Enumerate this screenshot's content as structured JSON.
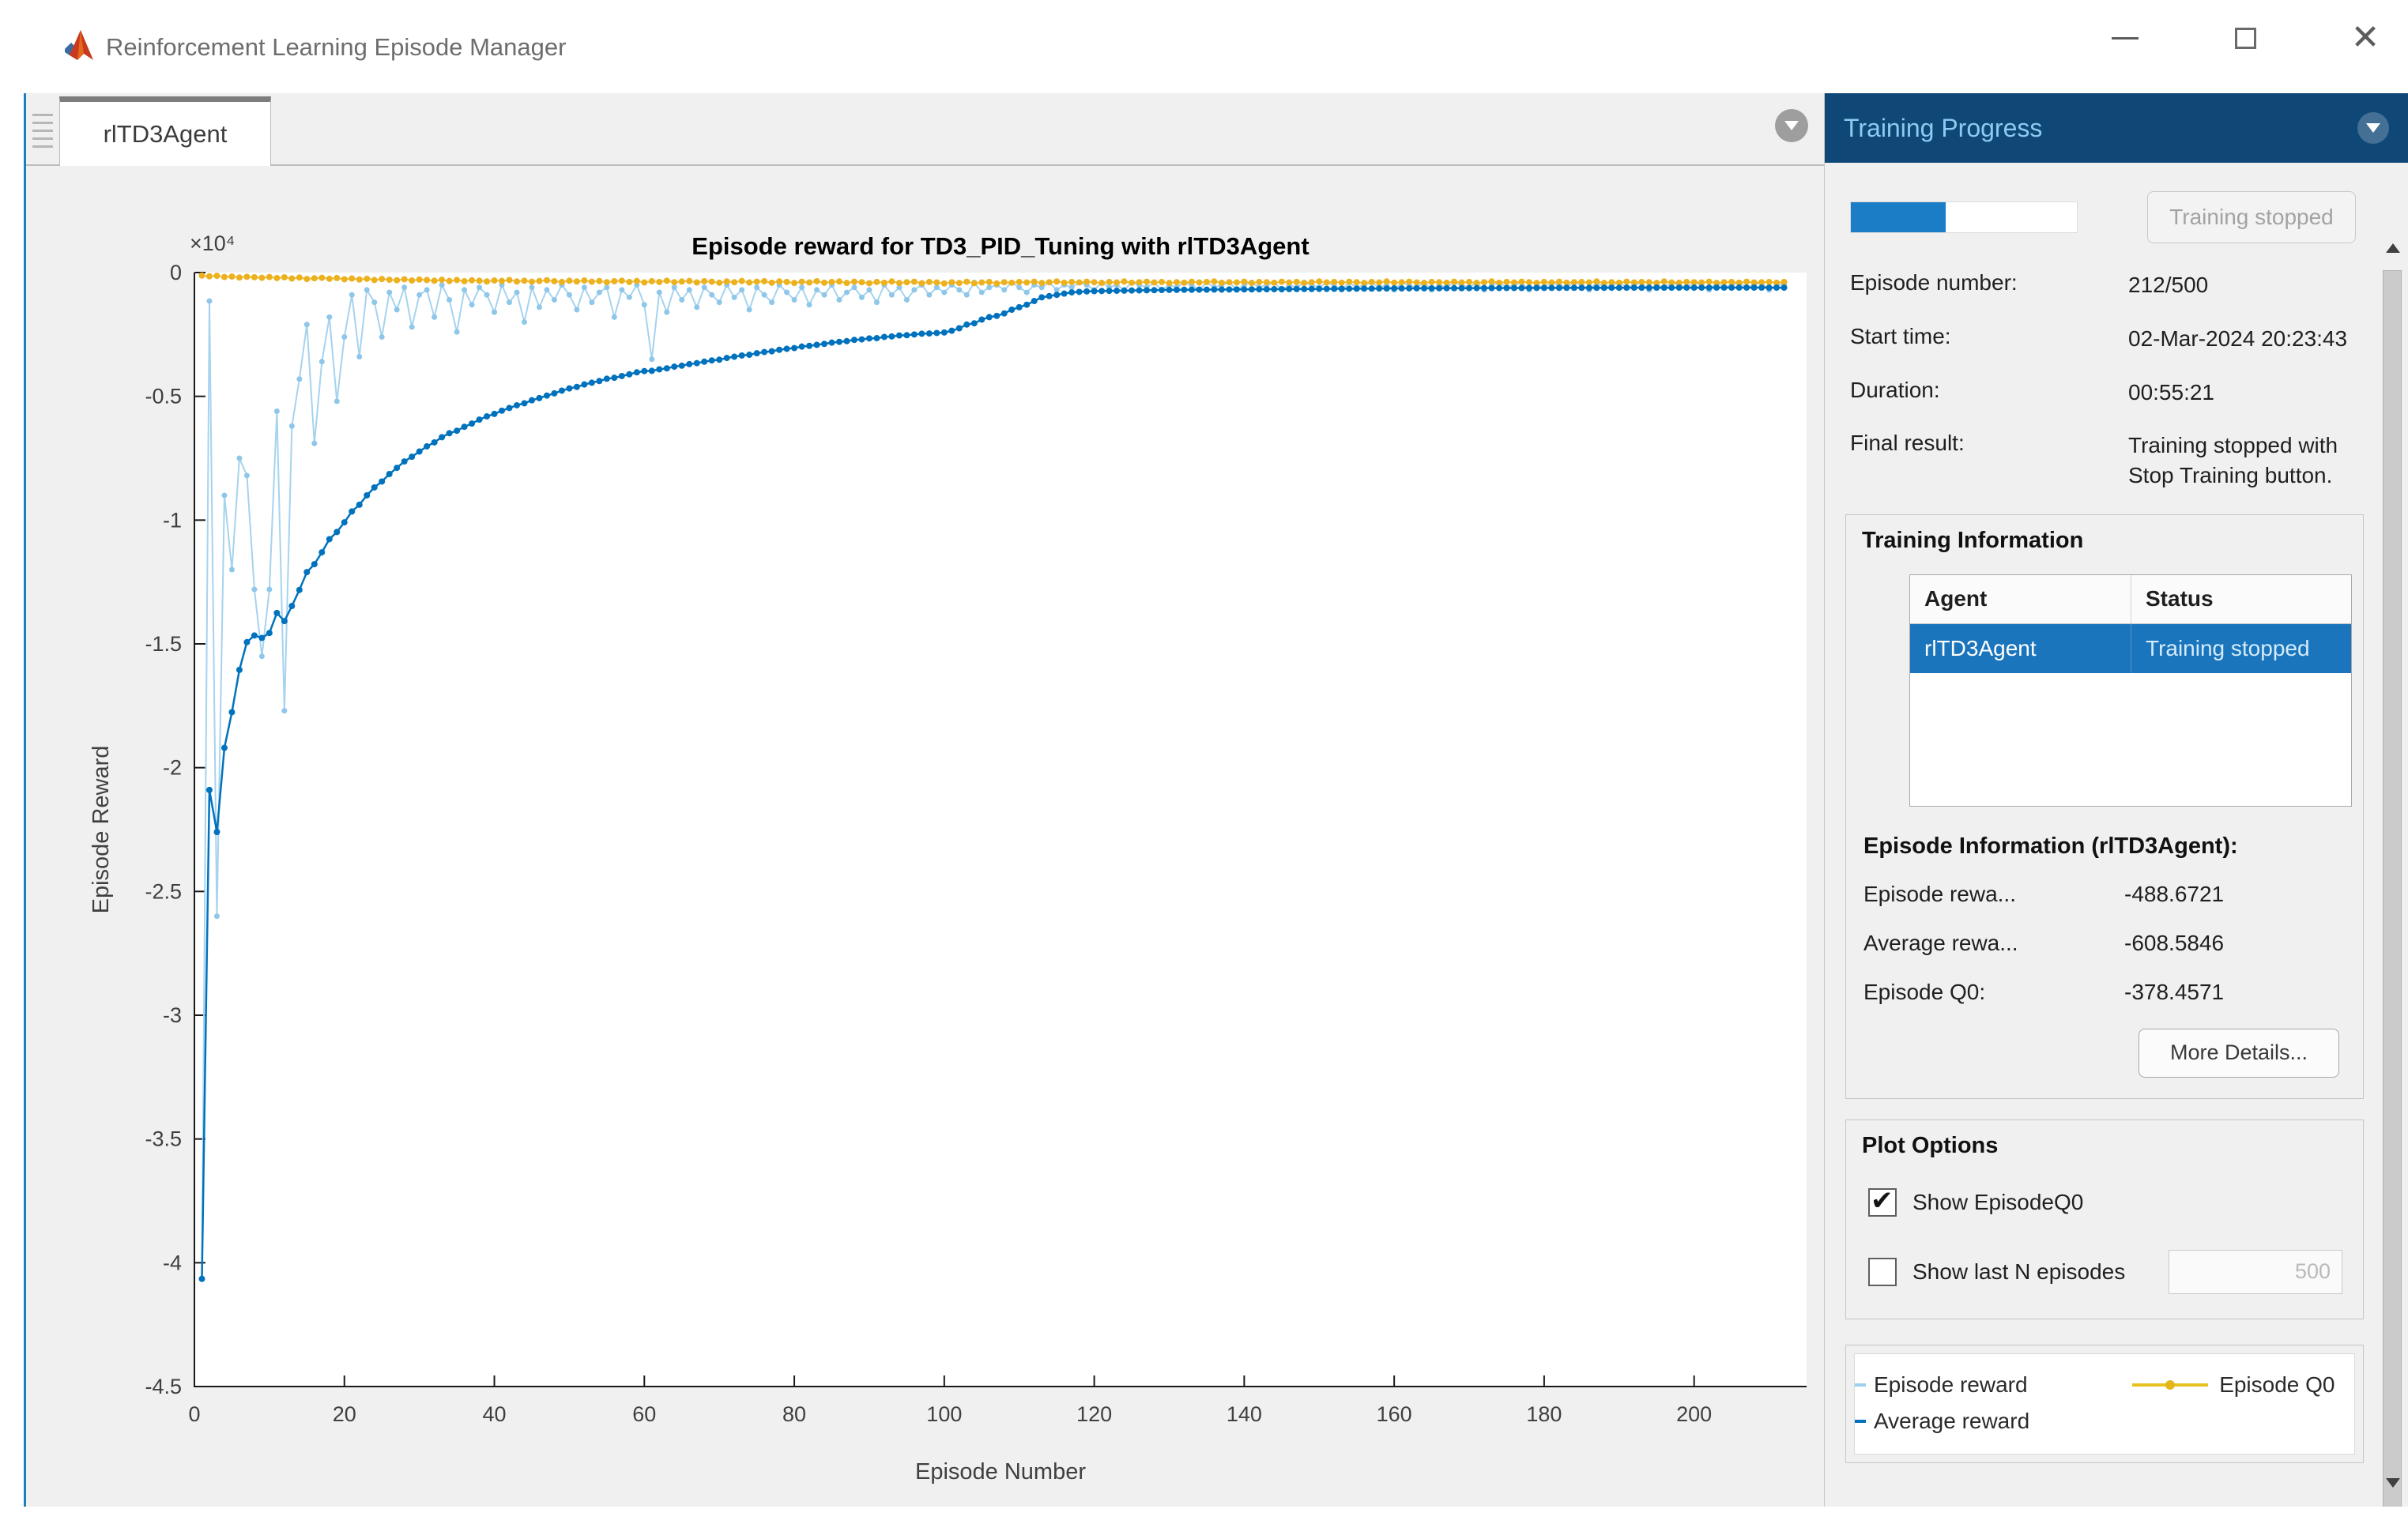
{
  "window": {
    "title": "Reinforcement Learning Episode Manager",
    "icons": {
      "logo": "matlab-logo",
      "minimize": "minimize-icon",
      "maximize": "maximize-icon",
      "close": "close-icon"
    }
  },
  "tabs": [
    {
      "label": "rlTD3Agent",
      "active": true
    }
  ],
  "panel": {
    "title": "Training Progress",
    "header_icon": "circle-chevron-down-icon",
    "progress": {
      "percent": 42,
      "button_label": "Training stopped"
    },
    "rows": {
      "episode_number": {
        "label": "Episode number:",
        "value": "212/500"
      },
      "start_time": {
        "label": "Start time:",
        "value": "02-Mar-2024 20:23:43"
      },
      "duration": {
        "label": "Duration:",
        "value": "00:55:21"
      },
      "final_result": {
        "label": "Final result:",
        "value": "Training stopped with Stop Training button."
      }
    },
    "training_information": {
      "title": "Training Information",
      "table": {
        "columns": [
          "Agent",
          "Status"
        ],
        "rows": [
          {
            "agent": "rlTD3Agent",
            "status": "Training stopped",
            "selected": true
          }
        ]
      }
    },
    "episode_information": {
      "title": "Episode Information (rlTD3Agent):",
      "rows": {
        "episode_reward": {
          "label": "Episode rewa...",
          "value": "-488.6721"
        },
        "average_reward": {
          "label": "Average rewa...",
          "value": "-608.5846"
        },
        "episode_q0": {
          "label": "Episode Q0:",
          "value": "-378.4571"
        }
      },
      "more_details_label": "More Details..."
    },
    "plot_options": {
      "title": "Plot Options",
      "show_q0": {
        "label": "Show EpisodeQ0",
        "checked": true
      },
      "show_last_n": {
        "label": "Show last N episodes",
        "checked": false,
        "value": "500",
        "disabled": true
      }
    },
    "legend": {
      "entries": [
        {
          "label": "Episode reward",
          "color": "#9ecfeb",
          "marker": "dash"
        },
        {
          "label": "Average reward",
          "color": "#0072bd",
          "marker": "dash"
        },
        {
          "label": "Episode Q0",
          "color": "#e8c21e",
          "marker": "line-dot"
        }
      ]
    }
  },
  "colors": {
    "panel_header_bg": "#0f4876",
    "panel_header_text": "#8ec9ef",
    "progress_blue": "#1a7dc5",
    "selection_blue": "#1b75bc",
    "episode_reward_blue": "#a6d3ee",
    "average_reward_blue": "#0072bd",
    "q0_yellow": "#edb120",
    "content_bg": "#f0f0f0"
  },
  "chart_data": {
    "type": "line",
    "title": "Episode reward for TD3_PID_Tuning with rlTD3Agent",
    "xlabel": "Episode Number",
    "ylabel": "Episode Reward",
    "y_multiplier_label": "×10⁴",
    "xlim": [
      0,
      215
    ],
    "ylim": [
      -45000,
      0
    ],
    "xticks": [
      0,
      20,
      40,
      60,
      80,
      100,
      120,
      140,
      160,
      180,
      200
    ],
    "yticks": [
      0,
      -5000,
      -10000,
      -15000,
      -20000,
      -25000,
      -30000,
      -35000,
      -40000,
      -45000
    ],
    "grid": false,
    "legend_position": "bottom-right-panel",
    "x_range": [
      1,
      212
    ],
    "series": [
      {
        "name": "Episode reward",
        "color": "#a6d3ee",
        "marker_color": "#8ec7e9",
        "line_width": 2,
        "marker_r": 3.5,
        "values": [
          -40650,
          -1150,
          -26000,
          -9000,
          -12000,
          -7500,
          -8200,
          -12800,
          -15500,
          -12800,
          -5600,
          -17700,
          -6200,
          -4300,
          -2100,
          -6900,
          -3600,
          -1800,
          -5200,
          -2600,
          -900,
          -3400,
          -700,
          -1200,
          -2600,
          -800,
          -1500,
          -600,
          -2200,
          -900,
          -700,
          -1800,
          -500,
          -1100,
          -2400,
          -700,
          -1300,
          -600,
          -900,
          -1600,
          -500,
          -1200,
          -800,
          -2000,
          -600,
          -1400,
          -700,
          -1100,
          -500,
          -900,
          -1500,
          -600,
          -1200,
          -800,
          -600,
          -1800,
          -700,
          -1000,
          -500,
          -1300,
          -3500,
          -800,
          -1600,
          -600,
          -1100,
          -700,
          -1400,
          -600,
          -900,
          -1200,
          -500,
          -1000,
          -700,
          -1500,
          -600,
          -900,
          -1200,
          -500,
          -800,
          -1100,
          -600,
          -1300,
          -700,
          -900,
          -500,
          -1100,
          -800,
          -600,
          -1000,
          -700,
          -1200,
          -500,
          -900,
          -600,
          -1100,
          -700,
          -500,
          -900,
          -600,
          -800,
          -500,
          -700,
          -900,
          -400,
          -800,
          -600,
          -500,
          -700,
          -400,
          -600,
          -800,
          -500,
          -600,
          -400,
          -700,
          -500,
          -600,
          -400,
          -500,
          -700,
          -400,
          -600,
          -500,
          -700,
          -400,
          -500,
          -600,
          -400,
          -700,
          -500,
          -600,
          -400,
          -500,
          -700,
          -400,
          -600,
          -500,
          -400,
          -700,
          -500,
          -400,
          -600,
          -500,
          -400,
          -700,
          -500,
          -600,
          -400,
          -500,
          -600,
          -400,
          -500,
          -700,
          -400,
          -600,
          -500,
          -400,
          -600,
          -500,
          -700,
          -400,
          -500,
          -600,
          -400,
          -700,
          -500,
          -600,
          -400,
          -500,
          -600,
          -400,
          -700,
          -500,
          -400,
          -600,
          -500,
          -400,
          -700,
          -500,
          -600,
          -400,
          -500,
          -600,
          -400,
          -500,
          -700,
          -400,
          -600,
          -500,
          -400,
          -600,
          -500,
          -400,
          -700,
          -500,
          -600,
          -400,
          -500,
          -600,
          -400,
          -500,
          -700,
          -400,
          -600,
          -500,
          -400,
          -600,
          -500,
          -400,
          -700,
          -500,
          -488.6721
        ]
      },
      {
        "name": "Average reward",
        "color": "#0072bd",
        "marker_color": "#0072bd",
        "line_width": 2.5,
        "marker_r": 4,
        "values": [
          -40650,
          -20900,
          -22600,
          -19200,
          -17760,
          -16050,
          -14930,
          -14660,
          -14760,
          -14560,
          -13750,
          -14080,
          -13470,
          -12820,
          -12100,
          -11780,
          -11300,
          -10770,
          -10480,
          -10090,
          -9650,
          -9380,
          -9000,
          -8680,
          -8440,
          -8140,
          -7890,
          -7630,
          -7440,
          -7230,
          -7020,
          -6860,
          -6650,
          -6490,
          -6390,
          -6230,
          -6100,
          -5940,
          -5810,
          -5710,
          -5580,
          -5470,
          -5360,
          -5280,
          -5160,
          -5070,
          -4970,
          -4880,
          -4770,
          -4680,
          -4620,
          -4520,
          -4450,
          -4380,
          -4290,
          -4250,
          -4180,
          -4110,
          -4030,
          -3980,
          -3970,
          -3910,
          -3870,
          -3800,
          -3760,
          -3700,
          -3660,
          -3600,
          -3550,
          -3520,
          -3450,
          -3400,
          -3350,
          -3320,
          -3260,
          -3210,
          -3180,
          -3120,
          -3080,
          -3050,
          -2990,
          -2960,
          -2920,
          -2880,
          -2830,
          -2800,
          -2770,
          -2720,
          -2700,
          -2660,
          -2650,
          -2600,
          -2580,
          -2540,
          -2530,
          -2500,
          -2470,
          -2460,
          -2440,
          -2420,
          -2350,
          -2250,
          -2100,
          -2050,
          -1900,
          -1800,
          -1750,
          -1650,
          -1500,
          -1400,
          -1300,
          -1150,
          -1000,
          -950,
          -900,
          -850,
          -800,
          -780,
          -760,
          -750,
          -745,
          -740,
          -735,
          -730,
          -725,
          -720,
          -715,
          -710,
          -705,
          -700,
          -698,
          -696,
          -694,
          -692,
          -690,
          -688,
          -686,
          -684,
          -682,
          -680,
          -678,
          -676,
          -674,
          -672,
          -670,
          -668,
          -666,
          -664,
          -662,
          -660,
          -658,
          -656,
          -654,
          -652,
          -650,
          -648,
          -646,
          -644,
          -642,
          -640,
          -638,
          -637,
          -636,
          -635,
          -634,
          -633,
          -632,
          -631,
          -630,
          -629,
          -628,
          -627,
          -626,
          -625,
          -624,
          -623,
          -622,
          -621,
          -620,
          -619,
          -618,
          -617,
          -616,
          -616,
          -615,
          -615,
          -614,
          -614,
          -613,
          -613,
          -612,
          -612,
          -611,
          -611,
          -610,
          -610,
          -610,
          -609,
          -609,
          -609,
          -609,
          -609,
          -608,
          -608,
          -608,
          -608,
          -608,
          -608,
          -608,
          -609,
          -609,
          -608.5846
        ]
      },
      {
        "name": "Episode Q0",
        "color": "#edc12b",
        "marker_color": "#edb120",
        "line_width": 2,
        "marker_r": 4,
        "values": [
          -120,
          -150,
          -130,
          -180,
          -160,
          -200,
          -170,
          -190,
          -210,
          -180,
          -220,
          -190,
          -240,
          -200,
          -260,
          -230,
          -210,
          -250,
          -220,
          -270,
          -240,
          -280,
          -250,
          -300,
          -260,
          -290,
          -310,
          -270,
          -320,
          -280,
          -300,
          -330,
          -290,
          -340,
          -300,
          -350,
          -310,
          -330,
          -360,
          -320,
          -340,
          -300,
          -360,
          -330,
          -370,
          -340,
          -310,
          -350,
          -380,
          -330,
          -360,
          -320,
          -370,
          -340,
          -390,
          -350,
          -330,
          -380,
          -340,
          -400,
          -350,
          -380,
          -330,
          -390,
          -360,
          -340,
          -400,
          -350,
          -370,
          -410,
          -360,
          -390,
          -340,
          -400,
          -370,
          -350,
          -410,
          -360,
          -380,
          -420,
          -370,
          -400,
          -350,
          -410,
          -380,
          -360,
          -420,
          -370,
          -390,
          -430,
          -380,
          -410,
          -360,
          -420,
          -390,
          -370,
          -430,
          -380,
          -400,
          -440,
          -390,
          -420,
          -370,
          -430,
          -400,
          -380,
          -440,
          -390,
          -410,
          -380,
          -400,
          -370,
          -420,
          -390,
          -360,
          -410,
          -380,
          -400,
          -370,
          -390,
          -420,
          -380,
          -400,
          -360,
          -410,
          -390,
          -370,
          -400,
          -380,
          -420,
          -390,
          -410,
          -370,
          -400,
          -380,
          -360,
          -410,
          -390,
          -400,
          -370,
          -420,
          -380,
          -390,
          -410,
          -370,
          -400,
          -380,
          -420,
          -390,
          -360,
          -400,
          -380,
          -410,
          -370,
          -390,
          -420,
          -380,
          -400,
          -360,
          -410,
          -390,
          -370,
          -400,
          -420,
          -380,
          -390,
          -410,
          -370,
          -400,
          -380,
          -420,
          -390,
          -360,
          -410,
          -380,
          -400,
          -370,
          -390,
          -420,
          -380,
          -400,
          -370,
          -410,
          -390,
          -380,
          -400,
          -360,
          -420,
          -390,
          -410,
          -370,
          -400,
          -380,
          -390,
          -420,
          -360,
          -400,
          -410,
          -380,
          -390,
          -400,
          -370,
          -420,
          -390,
          -380,
          -410,
          -370,
          -400,
          -390,
          -380,
          -410,
          -378.4571
        ]
      }
    ]
  }
}
